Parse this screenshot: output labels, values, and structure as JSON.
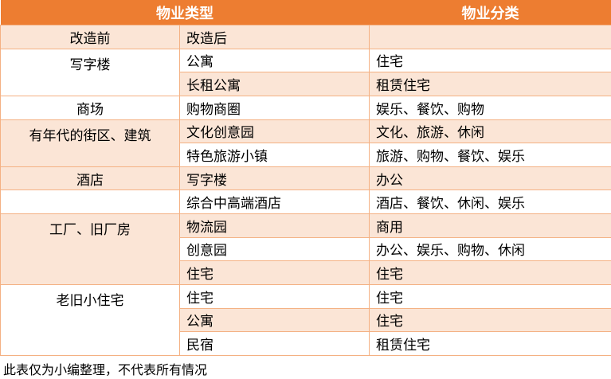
{
  "colors": {
    "header_bg": "#ED7D31",
    "header_text": "#FFFFFF",
    "row_light_bg": "#FBE5D6",
    "row_white_bg": "#FFFFFF",
    "border": "#F4B183",
    "body_text": "#000000"
  },
  "table": {
    "header": {
      "property_type": "物业类型",
      "property_category": "物业分类"
    },
    "subheader": {
      "before": "改造前",
      "after": "改造后",
      "category": ""
    },
    "rows": [
      {
        "before": "写字楼",
        "after": "公寓",
        "category": "住宅"
      },
      {
        "after": "长租公寓",
        "category": "租赁住宅"
      },
      {
        "before": "商场",
        "after": "购物商圈",
        "category": "娱乐、餐饮、购物"
      },
      {
        "before": "有年代的街区、建筑",
        "after": "文化创意园",
        "category": "文化、旅游、休闲"
      },
      {
        "after": "特色旅游小镇",
        "category": "旅游、购物、餐饮、娱乐"
      },
      {
        "before": "酒店",
        "after": "写字楼",
        "category": "办公"
      },
      {
        "before": "",
        "after": "综合中高端酒店",
        "category": "酒店、餐饮、休闲、娱乐"
      },
      {
        "before": "工厂、旧厂房",
        "after": "物流园",
        "category": "商用"
      },
      {
        "after": "创意园",
        "category": "办公、娱乐、购物、休闲"
      },
      {
        "after": "住宅",
        "category": "住宅"
      },
      {
        "before": "老旧小住宅",
        "after": "住宅",
        "category": "住宅"
      },
      {
        "after": "公寓",
        "category": "住宅"
      },
      {
        "after": "民宿",
        "category": "租赁住宅"
      }
    ],
    "footer_note": "此表仅为小编整理，不代表所有情况"
  }
}
